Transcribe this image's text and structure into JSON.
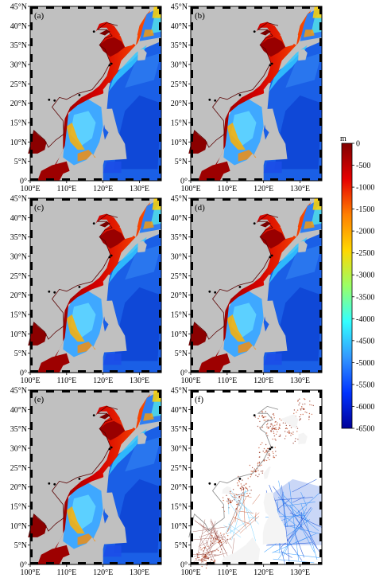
{
  "figure": {
    "panels": [
      {
        "label": "(a)",
        "type": "bathymetry"
      },
      {
        "label": "(b)",
        "type": "bathymetry"
      },
      {
        "label": "(c)",
        "type": "bathymetry"
      },
      {
        "label": "(d)",
        "type": "bathymetry"
      },
      {
        "label": "(e)",
        "type": "bathymetry"
      },
      {
        "label": "(f)",
        "type": "sounding-tracks"
      }
    ],
    "lat_ticks": [
      "0°",
      "5°N",
      "10°N",
      "15°N",
      "20°N",
      "25°N",
      "30°N",
      "35°N",
      "40°N",
      "45°N"
    ],
    "lon_ticks": [
      "100°E",
      "110°E",
      "120°E",
      "130°E"
    ],
    "extent": {
      "lon": [
        100,
        136
      ],
      "lat": [
        0,
        45
      ]
    },
    "colors": {
      "land": "#c0c0c0",
      "frame": "#000000"
    }
  },
  "colorbar": {
    "unit": "m",
    "ticks": [
      "0",
      "-500",
      "-1000",
      "-1500",
      "-2000",
      "-2500",
      "-3000",
      "-3500",
      "-4000",
      "-4500",
      "-5000",
      "-5500",
      "-6000",
      "-6500"
    ],
    "range": [
      -6500,
      0
    ],
    "colormap": [
      "#800000",
      "#e60000",
      "#ff7f00",
      "#ffd700",
      "#9aff66",
      "#33ffff",
      "#3399ff",
      "#0033ff",
      "#000099"
    ]
  }
}
